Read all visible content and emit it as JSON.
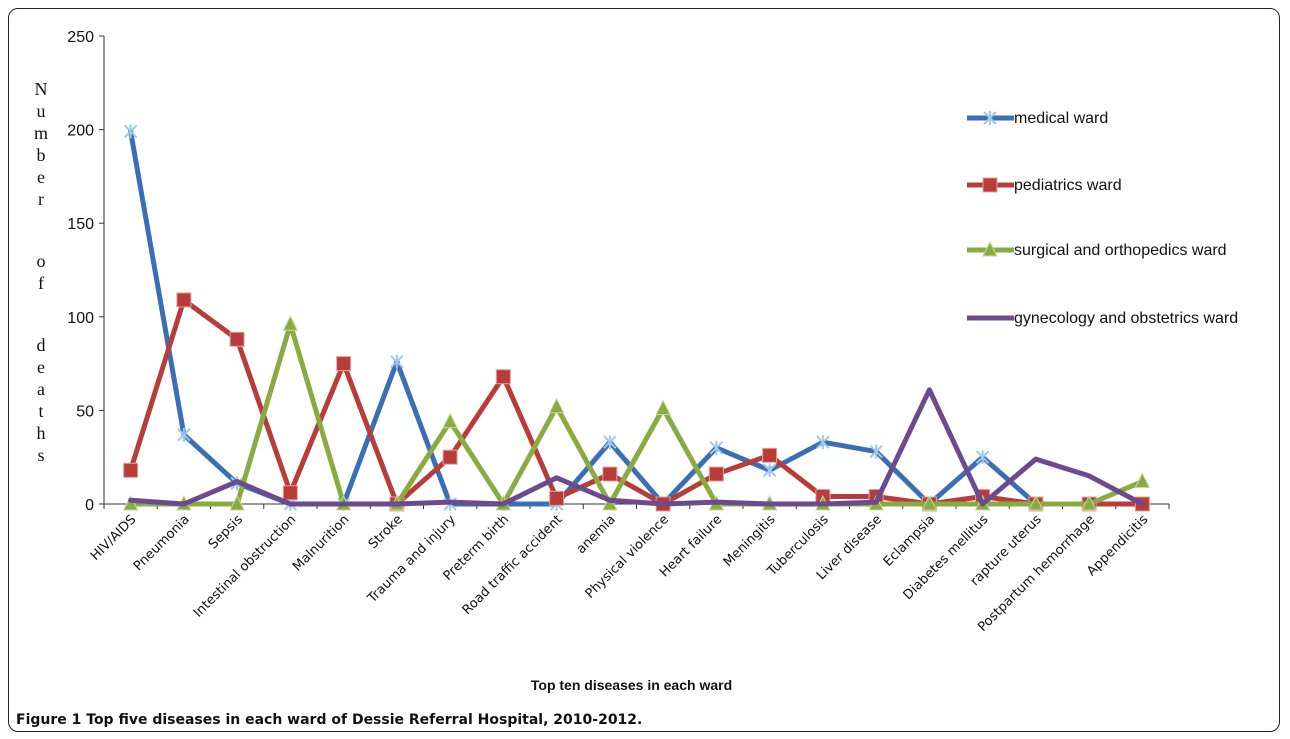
{
  "caption": {
    "label": "Figure 1",
    "text": " Top five diseases in each ward of Dessie Referral Hospital, 2010-2012."
  },
  "chart_data": {
    "type": "line",
    "xlabel": "Top ten diseases in each ward",
    "ylabel": "Number of deaths",
    "ylim": [
      0,
      250
    ],
    "yticks": [
      0,
      50,
      100,
      150,
      200,
      250
    ],
    "legend_position": "right",
    "categories": [
      "HIV/AIDS",
      "Pneumonia",
      "Sepsis",
      "Intestinal obstruction",
      "Malnurition",
      "Stroke",
      "Trauma and injury",
      "Preterm birth",
      "Road traffic accident",
      "anemia",
      "Physical violence",
      "Heart failure",
      "Meningitis",
      "Tuberculosis",
      "Liver disease",
      "Eclampsia",
      "Diabetes mellitus",
      "rapture uterus",
      "Postpartum hemorrhage",
      "Appendicitis"
    ],
    "series": [
      {
        "name": "medical ward",
        "color": "#3a6fb5",
        "marker": "star",
        "values": [
          199,
          37,
          11,
          0,
          0,
          76,
          0,
          0,
          0,
          33,
          0,
          30,
          18,
          33,
          28,
          0,
          25,
          0,
          0,
          0
        ]
      },
      {
        "name": "pediatrics ward",
        "color": "#b83c39",
        "marker": "square",
        "values": [
          18,
          109,
          88,
          6,
          75,
          0,
          25,
          68,
          3,
          16,
          0,
          16,
          26,
          4,
          4,
          0,
          4,
          0,
          0,
          0
        ]
      },
      {
        "name": "surgical and orthopedics ward",
        "color": "#8aaa42",
        "marker": "triangle",
        "values": [
          0,
          0,
          0,
          96,
          0,
          0,
          44,
          0,
          52,
          0,
          51,
          0,
          0,
          0,
          0,
          0,
          0,
          0,
          0,
          12
        ]
      },
      {
        "name": "gynecology and obstetrics ward",
        "color": "#6b4a8f",
        "marker": "none",
        "values": [
          2,
          0,
          12,
          0,
          0,
          0,
          1,
          0,
          14,
          2,
          0,
          1,
          0,
          0,
          1,
          61,
          0,
          24,
          15,
          0
        ]
      }
    ]
  }
}
